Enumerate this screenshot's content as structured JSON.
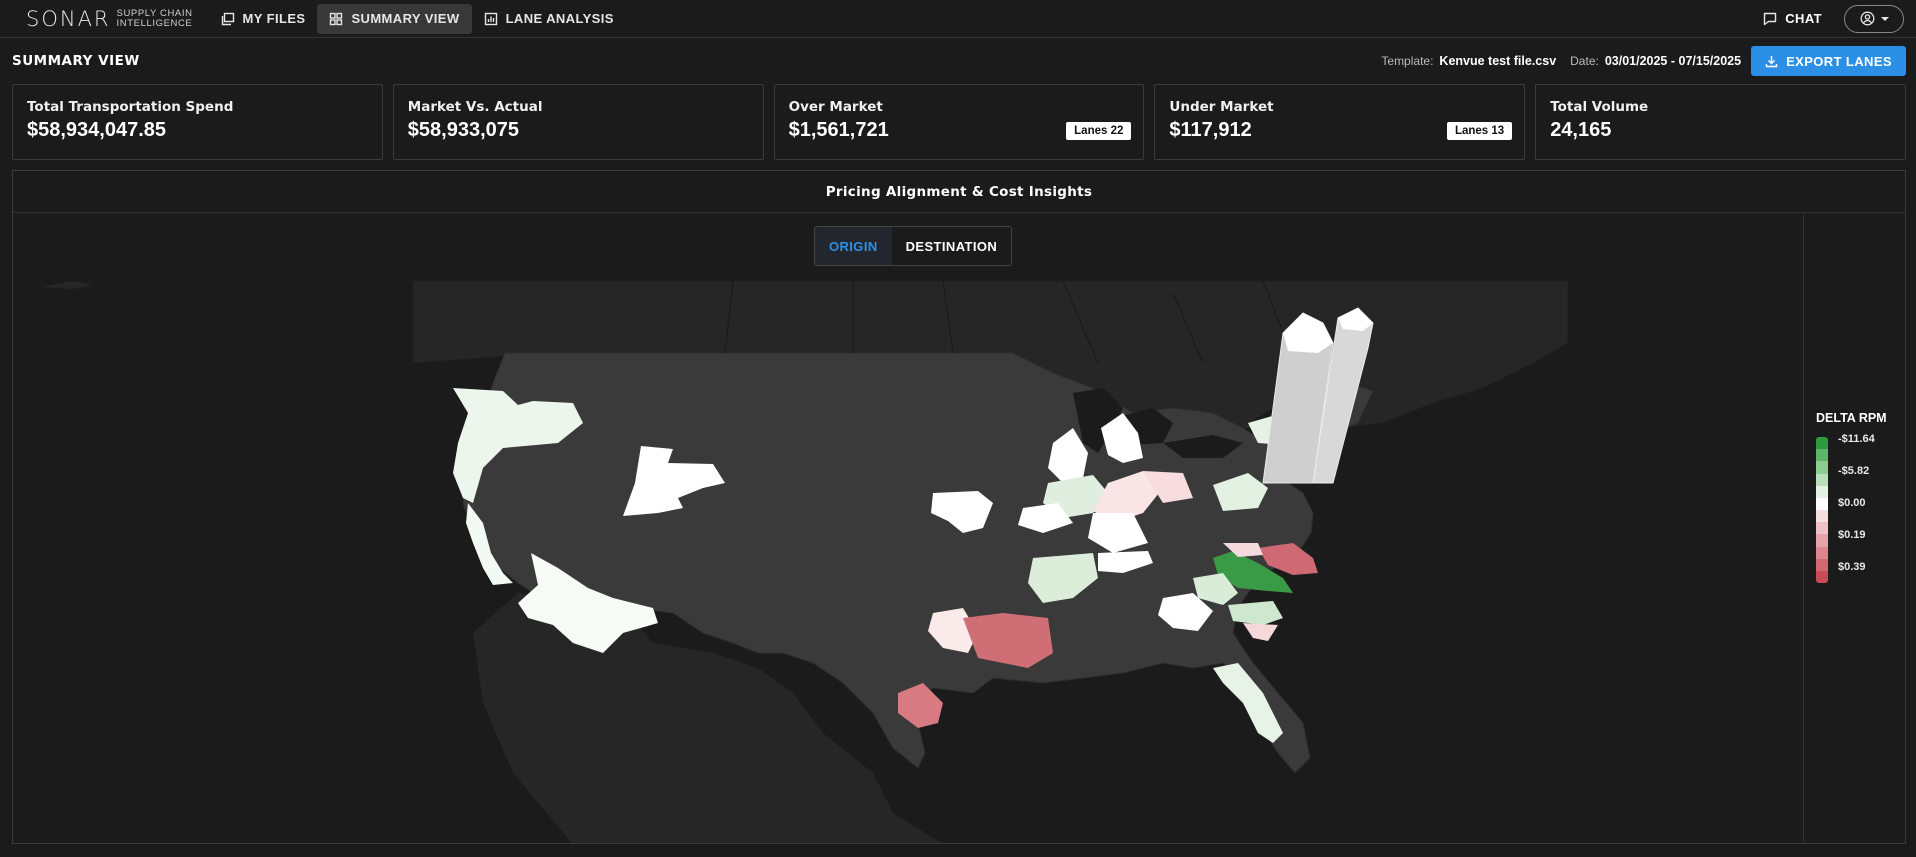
{
  "nav": {
    "logo_word": "SONAR",
    "logo_sub_line1": "SUPPLY CHAIN",
    "logo_sub_line2": "INTELLIGENCE",
    "items": [
      {
        "label": "MY FILES",
        "icon": "files-icon",
        "active": false
      },
      {
        "label": "SUMMARY VIEW",
        "icon": "grid-icon",
        "active": true
      },
      {
        "label": "LANE ANALYSIS",
        "icon": "chart-icon",
        "active": false
      }
    ],
    "chat_label": "CHAT",
    "user_icon": "user-circle-icon"
  },
  "header": {
    "title": "SUMMARY VIEW",
    "template_label": "Template:",
    "template_value": "Kenvue test file.csv",
    "date_label": "Date:",
    "date_value": "03/01/2025 - 07/15/2025",
    "export_label": "EXPORT LANES"
  },
  "cards": [
    {
      "label": "Total Transportation Spend",
      "value": "$58,934,047.85",
      "badge": ""
    },
    {
      "label": "Market Vs. Actual",
      "value": "$58,933,075",
      "badge": ""
    },
    {
      "label": "Over Market",
      "value": "$1,561,721",
      "badge": "Lanes 22"
    },
    {
      "label": "Under Market",
      "value": "$117,912",
      "badge": "Lanes 13"
    },
    {
      "label": "Total Volume",
      "value": "24,165",
      "badge": ""
    }
  ],
  "panel": {
    "title": "Pricing Alignment & Cost Insights",
    "toggle_origin": "ORIGIN",
    "toggle_destination": "DESTINATION",
    "selected_toggle": "ORIGIN"
  },
  "legend": {
    "title": "DELTA RPM",
    "labels": [
      "-$11.64",
      "-$5.82",
      "$0.00",
      "$0.19",
      "$0.39"
    ],
    "colors": [
      "#2f9b3e",
      "#5db567",
      "#8ccb91",
      "#b9dfbb",
      "#e2f1e2",
      "#ffffff",
      "#f6dfe1",
      "#eec2c6",
      "#e6a4aa",
      "#dd868e",
      "#d46872",
      "#c94b57"
    ]
  },
  "colors": {
    "accent": "#2b8fe6",
    "background": "#1b1b1b",
    "us_land": "#3a3a3a",
    "outer_land": "#262626"
  }
}
